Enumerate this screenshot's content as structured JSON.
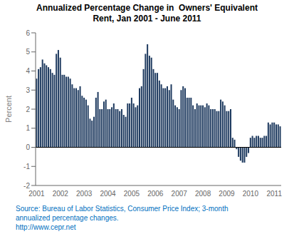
{
  "chart_data": {
    "type": "bar",
    "title": "Annualized Percentage Change in  Owners' Equivalent\nRent, Jan 2001 - June 2011",
    "y_label": "Percent",
    "source": "Source: Bureau of Labor Statistics, Consumer Price Index; 3-month\nannualized percentage changes.\nhttp://www.cepr.net",
    "color": "#1e3a5f",
    "grid": false,
    "ylim": [
      -2,
      6
    ],
    "yticks": [
      -2,
      -1,
      0,
      1,
      2,
      3,
      4,
      5,
      6
    ],
    "categories": [
      "2001",
      null,
      null,
      null,
      null,
      null,
      null,
      null,
      null,
      null,
      null,
      null,
      "2002",
      null,
      null,
      null,
      null,
      null,
      null,
      null,
      null,
      null,
      null,
      null,
      "2003",
      null,
      null,
      null,
      null,
      null,
      null,
      null,
      null,
      null,
      null,
      null,
      "2004",
      null,
      null,
      null,
      null,
      null,
      null,
      null,
      null,
      null,
      null,
      null,
      "2005",
      null,
      null,
      null,
      null,
      null,
      null,
      null,
      null,
      null,
      null,
      null,
      "2006",
      null,
      null,
      null,
      null,
      null,
      null,
      null,
      null,
      null,
      null,
      null,
      "2007",
      null,
      null,
      null,
      null,
      null,
      null,
      null,
      null,
      null,
      null,
      null,
      "2008",
      null,
      null,
      null,
      null,
      null,
      null,
      null,
      null,
      null,
      null,
      null,
      "2009",
      null,
      null,
      null,
      null,
      null,
      null,
      null,
      null,
      null,
      null,
      null,
      "2010",
      null,
      null,
      null,
      null,
      null,
      null,
      null,
      null,
      null,
      null,
      null,
      "2011",
      null,
      null,
      null
    ],
    "values": [
      3.6,
      4.1,
      4.2,
      4.6,
      4.4,
      4.3,
      4.2,
      4.1,
      3.9,
      3.8,
      4.9,
      5.1,
      4.7,
      3.8,
      3.8,
      3.7,
      3.7,
      3.6,
      3.3,
      3.1,
      3.1,
      3.0,
      3.2,
      2.7,
      2.6,
      2.5,
      2.2,
      1.5,
      1.4,
      1.6,
      2.6,
      2.9,
      2.0,
      2.0,
      2.4,
      2.5,
      2.0,
      2.0,
      2.1,
      2.3,
      2.0,
      2.0,
      1.9,
      2.0,
      1.7,
      1.6,
      2.3,
      2.3,
      2.6,
      2.3,
      2.1,
      2.2,
      3.1,
      3.2,
      4.1,
      4.9,
      5.4,
      4.8,
      4.7,
      4.1,
      3.9,
      3.9,
      3.5,
      3.3,
      3.1,
      3.1,
      3.2,
      3.0,
      3.3,
      2.5,
      2.2,
      2.1,
      2.0,
      3.0,
      3.2,
      3.1,
      2.6,
      2.6,
      2.6,
      2.2,
      2.0,
      2.3,
      2.2,
      2.2,
      2.2,
      2.1,
      2.3,
      2.2,
      2.0,
      2.0,
      2.0,
      1.9,
      1.9,
      2.5,
      2.4,
      2.2,
      1.9,
      1.9,
      2.0,
      0.5,
      0.4,
      -0.1,
      -0.5,
      -0.7,
      -0.8,
      -0.8,
      -0.5,
      -0.3,
      0.5,
      0.6,
      0.5,
      0.6,
      0.6,
      0.5,
      0.5,
      0.6,
      0.6,
      1.3,
      1.2,
      1.3,
      1.3,
      1.2,
      1.2,
      1.1
    ]
  }
}
